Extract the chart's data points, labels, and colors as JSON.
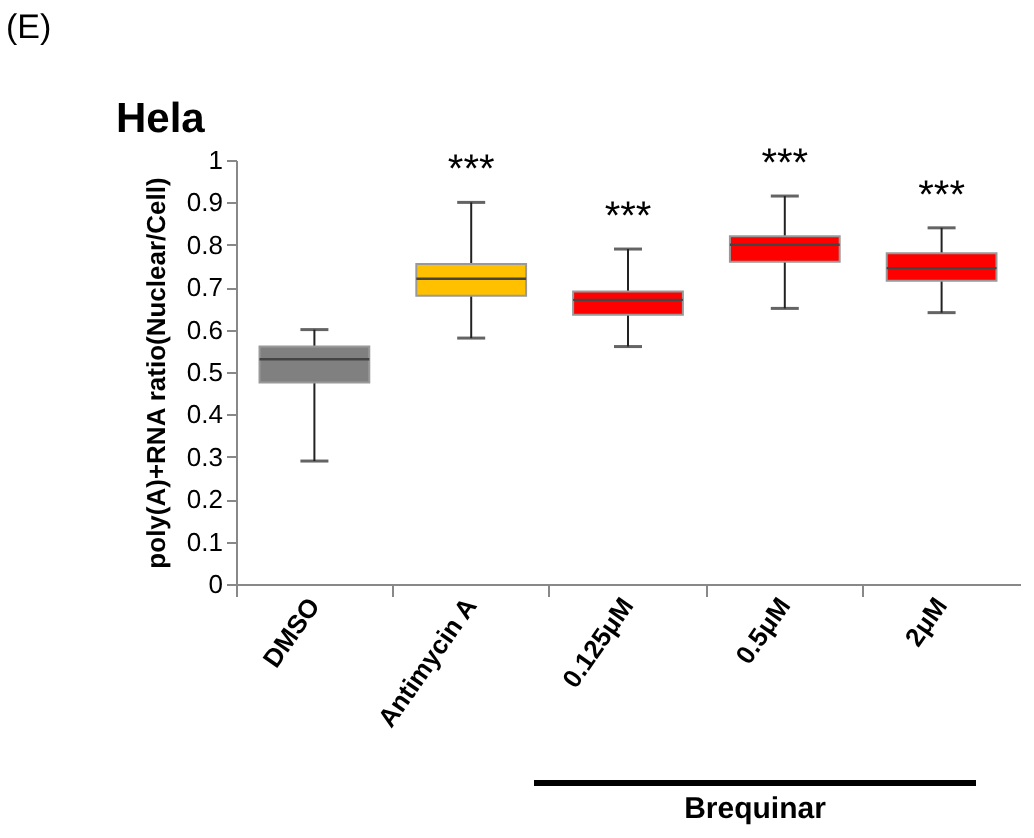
{
  "chart_data": {
    "type": "box",
    "title": "Hela",
    "ylabel": "poly(A)+RNA ratio(Nuclear/Cell)",
    "categories": [
      "DMSO",
      "Antimycin A",
      "0.125μM",
      "0.5μM",
      "2μM"
    ],
    "boxes": [
      {
        "low": 0.29,
        "q1": 0.475,
        "median": 0.53,
        "q3": 0.56,
        "high": 0.6
      },
      {
        "low": 0.58,
        "q1": 0.68,
        "median": 0.72,
        "q3": 0.755,
        "high": 0.9
      },
      {
        "low": 0.56,
        "q1": 0.635,
        "median": 0.67,
        "q3": 0.69,
        "high": 0.79
      },
      {
        "low": 0.65,
        "q1": 0.76,
        "median": 0.8,
        "q3": 0.82,
        "high": 0.915
      },
      {
        "low": 0.64,
        "q1": 0.715,
        "median": 0.745,
        "q3": 0.78,
        "high": 0.84
      }
    ],
    "colors": [
      "#808080",
      "#ffc000",
      "#ff0000",
      "#ff0000",
      "#ff0000"
    ],
    "ylim": [
      0,
      1
    ],
    "yticks": [
      0,
      0.1,
      0.2,
      0.3,
      0.4,
      0.5,
      0.6,
      0.7,
      0.8,
      0.9,
      1
    ],
    "grid": false,
    "annotations": [
      "(E)",
      "***",
      "***",
      "***",
      "***",
      "Brequinar"
    ]
  }
}
